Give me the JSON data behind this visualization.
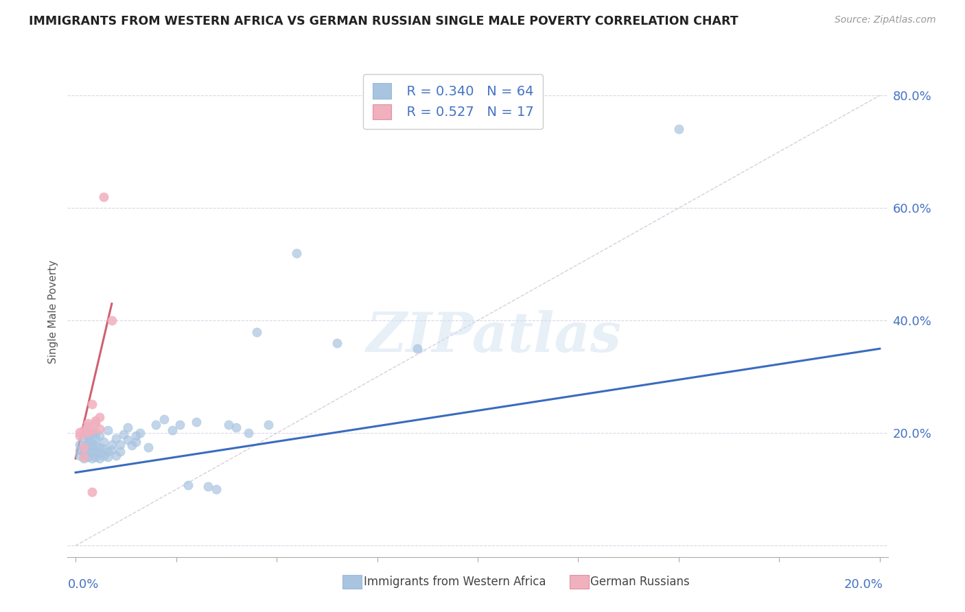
{
  "title": "IMMIGRANTS FROM WESTERN AFRICA VS GERMAN RUSSIAN SINGLE MALE POVERTY CORRELATION CHART",
  "source": "Source: ZipAtlas.com",
  "ylabel": "Single Male Poverty",
  "y_ticks": [
    0.0,
    0.2,
    0.4,
    0.6,
    0.8
  ],
  "y_tick_labels": [
    "",
    "20.0%",
    "40.0%",
    "60.0%",
    "80.0%"
  ],
  "color_blue": "#a8c4e0",
  "color_pink": "#f0b0be",
  "color_blue_line": "#3a6bbf",
  "color_pink_line": "#d06070",
  "color_blue_text": "#4472c4",
  "blue_scatter_x": [
    0.001,
    0.001,
    0.001,
    0.002,
    0.002,
    0.002,
    0.002,
    0.003,
    0.003,
    0.003,
    0.003,
    0.003,
    0.003,
    0.004,
    0.004,
    0.004,
    0.004,
    0.004,
    0.005,
    0.005,
    0.005,
    0.005,
    0.005,
    0.006,
    0.006,
    0.006,
    0.006,
    0.007,
    0.007,
    0.007,
    0.008,
    0.008,
    0.008,
    0.009,
    0.009,
    0.01,
    0.01,
    0.011,
    0.011,
    0.012,
    0.013,
    0.013,
    0.014,
    0.015,
    0.015,
    0.016,
    0.018,
    0.02,
    0.022,
    0.024,
    0.026,
    0.028,
    0.03,
    0.033,
    0.035,
    0.038,
    0.04,
    0.043,
    0.045,
    0.048,
    0.055,
    0.065,
    0.085,
    0.15
  ],
  "blue_scatter_y": [
    0.16,
    0.17,
    0.18,
    0.155,
    0.165,
    0.175,
    0.19,
    0.158,
    0.168,
    0.178,
    0.185,
    0.195,
    0.2,
    0.155,
    0.165,
    0.175,
    0.185,
    0.2,
    0.158,
    0.168,
    0.178,
    0.19,
    0.2,
    0.155,
    0.165,
    0.175,
    0.195,
    0.16,
    0.172,
    0.185,
    0.158,
    0.168,
    0.205,
    0.17,
    0.18,
    0.16,
    0.19,
    0.168,
    0.18,
    0.198,
    0.188,
    0.21,
    0.178,
    0.185,
    0.195,
    0.2,
    0.175,
    0.215,
    0.225,
    0.205,
    0.215,
    0.108,
    0.22,
    0.105,
    0.1,
    0.215,
    0.21,
    0.2,
    0.38,
    0.215,
    0.52,
    0.36,
    0.35,
    0.74
  ],
  "pink_scatter_x": [
    0.001,
    0.001,
    0.002,
    0.002,
    0.002,
    0.003,
    0.003,
    0.003,
    0.004,
    0.004,
    0.004,
    0.005,
    0.005,
    0.006,
    0.006,
    0.007,
    0.009
  ],
  "pink_scatter_y": [
    0.195,
    0.202,
    0.175,
    0.205,
    0.158,
    0.212,
    0.202,
    0.218,
    0.205,
    0.095,
    0.252,
    0.222,
    0.218,
    0.228,
    0.208,
    0.62,
    0.4
  ],
  "blue_trend_x": [
    0.0,
    0.2
  ],
  "blue_trend_y": [
    0.13,
    0.35
  ],
  "pink_trend_x": [
    0.0,
    0.009
  ],
  "pink_trend_y": [
    0.155,
    0.43
  ],
  "diag_line_x": [
    0.0,
    0.2
  ],
  "diag_line_y": [
    0.0,
    0.8
  ],
  "xlim": [
    -0.002,
    0.202
  ],
  "ylim": [
    -0.02,
    0.85
  ]
}
